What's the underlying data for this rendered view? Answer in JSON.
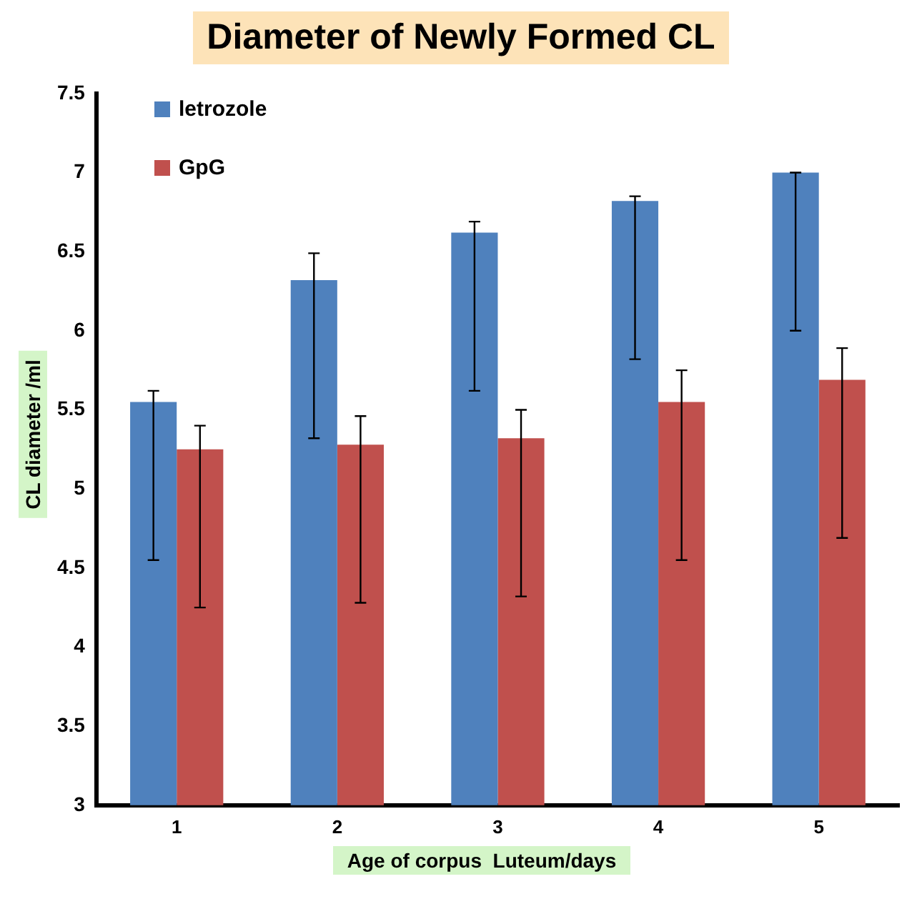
{
  "chart_data": {
    "type": "bar",
    "title": "Diameter of Newly Formed CL",
    "xlabel": "Age of corpus  Luteum/days",
    "ylabel": "CL diameter /ml",
    "categories": [
      "1",
      "2",
      "3",
      "4",
      "5"
    ],
    "series": [
      {
        "name": "letrozole",
        "color": "#4f81bd",
        "values": [
          5.55,
          6.32,
          6.62,
          6.82,
          7.0
        ],
        "errors": [
          [
            4.55,
            5.62
          ],
          [
            5.32,
            6.49
          ],
          [
            5.62,
            6.69
          ],
          [
            5.82,
            6.85
          ],
          [
            6.0,
            7.0
          ]
        ]
      },
      {
        "name": "GpG",
        "color": "#c0504d",
        "values": [
          5.25,
          5.28,
          5.32,
          5.55,
          5.69
        ],
        "errors": [
          [
            4.25,
            5.4
          ],
          [
            4.28,
            5.46
          ],
          [
            4.32,
            5.5
          ],
          [
            4.55,
            5.75
          ],
          [
            4.69,
            5.89
          ]
        ]
      }
    ],
    "ylim": [
      3,
      7.5
    ],
    "yticks": [
      3,
      3.5,
      4,
      4.5,
      5,
      5.5,
      6,
      6.5,
      7,
      7.5
    ],
    "grid": false,
    "legend": "top left"
  }
}
